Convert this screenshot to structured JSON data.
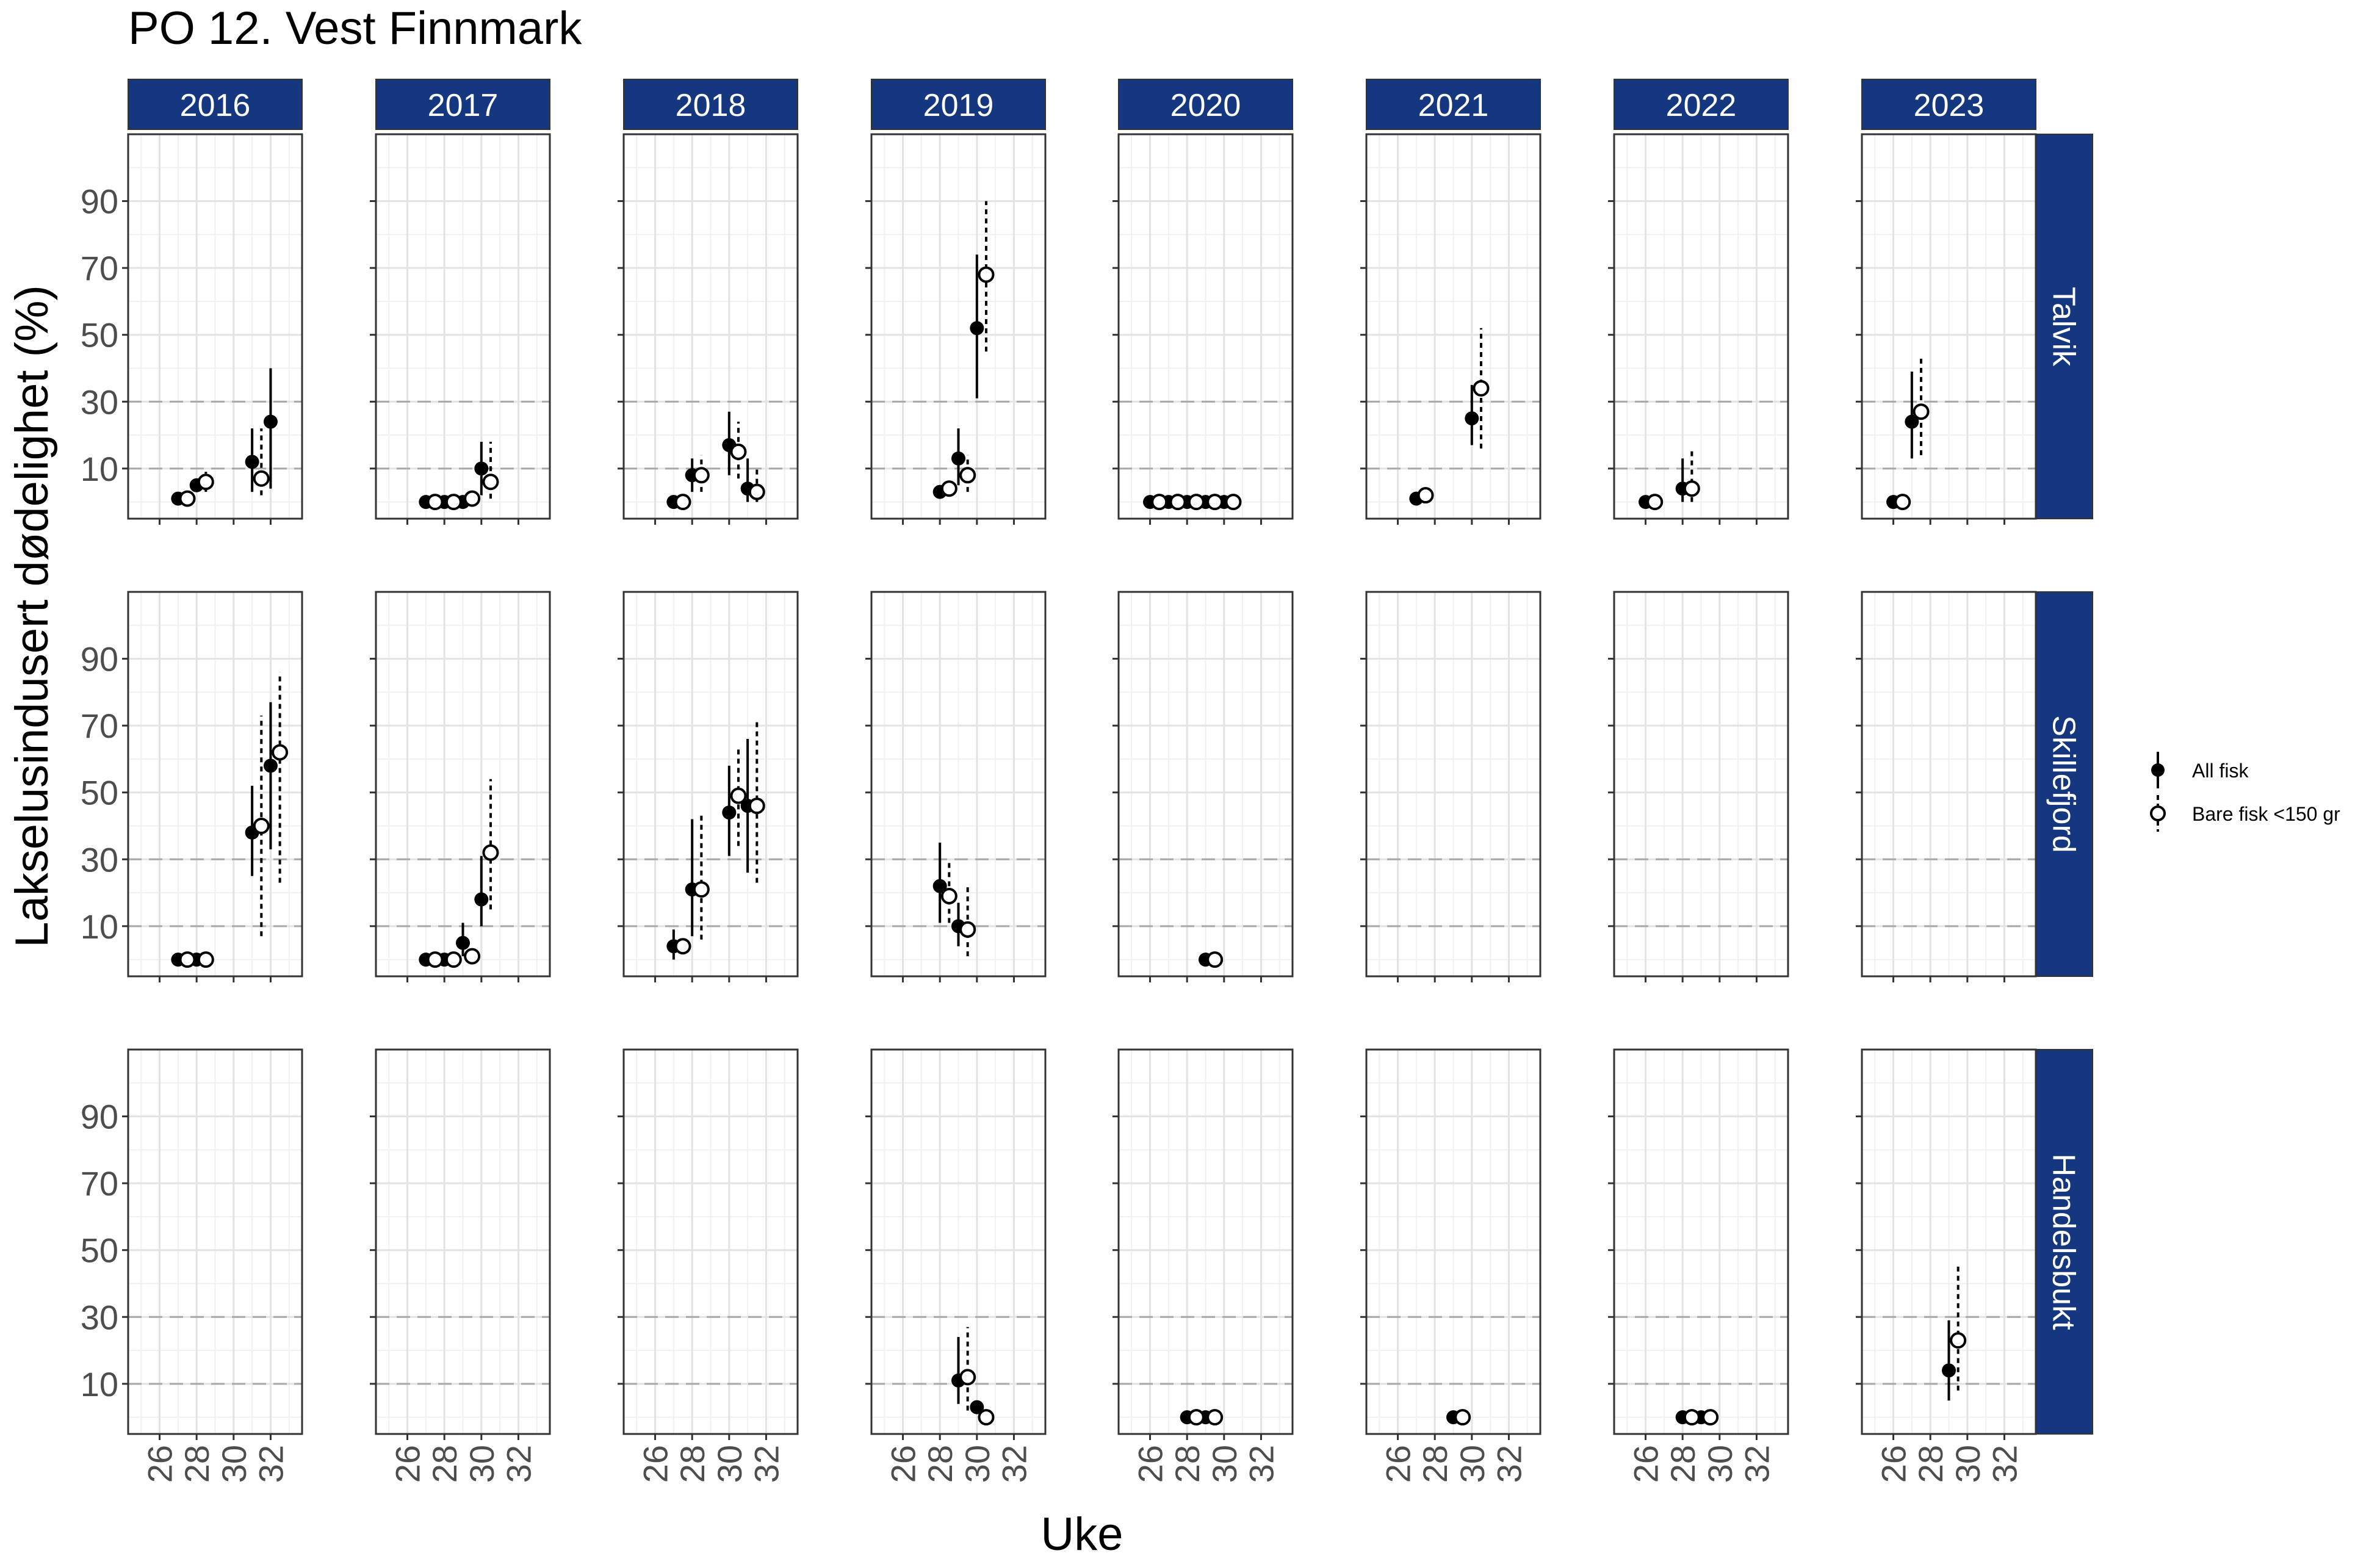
{
  "chart_data": {
    "type": "scatter",
    "title": "PO 12. Vest Finnmark",
    "xlabel": "Uke",
    "ylabel": "Lakselusindusert dødelighet (%)",
    "xlim": [
      24.3,
      33.7
    ],
    "ylim": [
      -5,
      110
    ],
    "xticks": [
      "26",
      "28",
      "30",
      "32"
    ],
    "yticks": [
      "10",
      "30",
      "50",
      "70",
      "90"
    ],
    "xtick_values": [
      26,
      28,
      30,
      32
    ],
    "ytick_values": [
      10,
      30,
      50,
      70,
      90
    ],
    "reference_lines": [
      10,
      30
    ],
    "header_color": "#15377f",
    "years": [
      "2016",
      "2017",
      "2018",
      "2019",
      "2020",
      "2021",
      "2022",
      "2023"
    ],
    "stations": [
      "Talvik",
      "Skillefjord",
      "Handelsbukt"
    ],
    "legend": {
      "position": "right",
      "all_label": "All fisk",
      "small_label": "Bare fisk <150 gr"
    },
    "series_names": [
      "All fisk",
      "Bare fisk <150 gr"
    ],
    "panels": {
      "Talvik": {
        "2016": {
          "all": [
            [
              27,
              1
            ],
            [
              28,
              5
            ],
            [
              31,
              12,
              3,
              22
            ],
            [
              32,
              24,
              4,
              40
            ]
          ],
          "small": [
            [
              27.5,
              1
            ],
            [
              28.5,
              6,
              3,
              9
            ],
            [
              31.5,
              7,
              2,
              22
            ]
          ]
        },
        "2017": {
          "all": [
            [
              27,
              0
            ],
            [
              28,
              0
            ],
            [
              29,
              0
            ],
            [
              30,
              10,
              2,
              18
            ]
          ],
          "small": [
            [
              27.5,
              0
            ],
            [
              28.5,
              0
            ],
            [
              29.5,
              1
            ],
            [
              30.5,
              6,
              1,
              18
            ]
          ]
        },
        "2018": {
          "all": [
            [
              27,
              0
            ],
            [
              28,
              8,
              3,
              13
            ],
            [
              30,
              17,
              8,
              27
            ],
            [
              31,
              4,
              0,
              13
            ]
          ],
          "small": [
            [
              27.5,
              0
            ],
            [
              28.5,
              8,
              3,
              14
            ],
            [
              30.5,
              15,
              7,
              24
            ],
            [
              31.5,
              3,
              0,
              10
            ]
          ]
        },
        "2019": {
          "all": [
            [
              28,
              3
            ],
            [
              29,
              13,
              5,
              22
            ],
            [
              30,
              52,
              31,
              74
            ]
          ],
          "small": [
            [
              28.5,
              4
            ],
            [
              29.5,
              8,
              3,
              14
            ],
            [
              30.5,
              68,
              45,
              90
            ]
          ]
        },
        "2020": {
          "all": [
            [
              26,
              0
            ],
            [
              27,
              0
            ],
            [
              28,
              0
            ],
            [
              29,
              0
            ],
            [
              30,
              0
            ]
          ],
          "small": [
            [
              26.5,
              0
            ],
            [
              27.5,
              0
            ],
            [
              28.5,
              0
            ],
            [
              29.5,
              0
            ],
            [
              30.5,
              0
            ]
          ]
        },
        "2021": {
          "all": [
            [
              27,
              1
            ],
            [
              30,
              25,
              17,
              35
            ]
          ],
          "small": [
            [
              27.5,
              2
            ],
            [
              30.5,
              34,
              16,
              52
            ]
          ]
        },
        "2022": {
          "all": [
            [
              26,
              0
            ],
            [
              28,
              4,
              0,
              13
            ]
          ],
          "small": [
            [
              26.5,
              0
            ],
            [
              28.5,
              4,
              0,
              16
            ]
          ]
        },
        "2023": {
          "all": [
            [
              26,
              0
            ],
            [
              27,
              24,
              13,
              39
            ]
          ],
          "small": [
            [
              26.5,
              0
            ],
            [
              27.5,
              27,
              14,
              43
            ]
          ]
        }
      },
      "Skillefjord": {
        "2016": {
          "all": [
            [
              27,
              0
            ],
            [
              28,
              0
            ],
            [
              31,
              38,
              25,
              52
            ],
            [
              32,
              58,
              33,
              77
            ]
          ],
          "small": [
            [
              27.5,
              0
            ],
            [
              28.5,
              0
            ],
            [
              31.5,
              40,
              7,
              73
            ],
            [
              32.5,
              62,
              23,
              86
            ]
          ]
        },
        "2017": {
          "all": [
            [
              27,
              0
            ],
            [
              28,
              0
            ],
            [
              29,
              5,
              1,
              11
            ],
            [
              30,
              18,
              10,
              31
            ]
          ],
          "small": [
            [
              27.5,
              0
            ],
            [
              28.5,
              0
            ],
            [
              29.5,
              1
            ],
            [
              30.5,
              32,
              15,
              54
            ]
          ]
        },
        "2018": {
          "all": [
            [
              27,
              4,
              0,
              9
            ],
            [
              28,
              21,
              7,
              42
            ],
            [
              30,
              44,
              31,
              58
            ],
            [
              31,
              46,
              26,
              66
            ]
          ],
          "small": [
            [
              27.5,
              4
            ],
            [
              28.5,
              21,
              6,
              44
            ],
            [
              30.5,
              49,
              34,
              64
            ],
            [
              31.5,
              46,
              23,
              71
            ]
          ]
        },
        "2019": {
          "all": [
            [
              28,
              22,
              11,
              35
            ],
            [
              29,
              10,
              4,
              17
            ]
          ],
          "small": [
            [
              28.5,
              19,
              11,
              30
            ],
            [
              29.5,
              9,
              1,
              22
            ]
          ]
        },
        "2020": {
          "all": [
            [
              29,
              0
            ]
          ],
          "small": [
            [
              29.5,
              0
            ]
          ]
        },
        "2021": {
          "all": [],
          "small": []
        },
        "2022": {
          "all": [],
          "small": []
        },
        "2023": {
          "all": [],
          "small": []
        }
      },
      "Handelsbukt": {
        "2016": {
          "all": [],
          "small": []
        },
        "2017": {
          "all": [],
          "small": []
        },
        "2018": {
          "all": [],
          "small": []
        },
        "2019": {
          "all": [
            [
              29,
              11,
              4,
              24
            ],
            [
              30,
              3
            ]
          ],
          "small": [
            [
              29.5,
              12,
              2,
              27
            ],
            [
              30.5,
              0
            ]
          ]
        },
        "2020": {
          "all": [
            [
              28,
              0
            ],
            [
              29,
              0
            ]
          ],
          "small": [
            [
              28.5,
              0
            ],
            [
              29.5,
              0
            ]
          ]
        },
        "2021": {
          "all": [
            [
              29,
              0
            ]
          ],
          "small": [
            [
              29.5,
              0
            ]
          ]
        },
        "2022": {
          "all": [
            [
              28,
              0
            ],
            [
              29,
              0
            ]
          ],
          "small": [
            [
              28.5,
              0
            ],
            [
              29.5,
              0
            ]
          ]
        },
        "2023": {
          "all": [
            [
              29,
              14,
              5,
              29
            ]
          ],
          "small": [
            [
              29.5,
              23,
              8,
              46
            ]
          ]
        }
      }
    }
  }
}
